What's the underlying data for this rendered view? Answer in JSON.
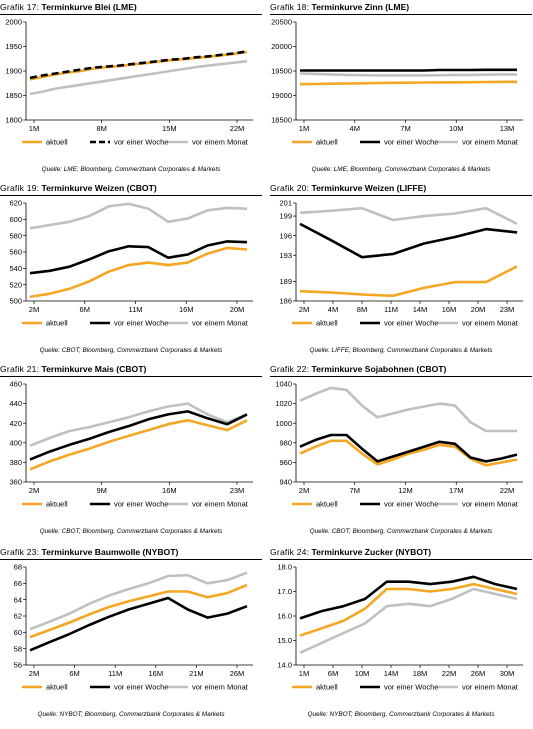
{
  "legend_default": [
    "aktuell",
    "vor einer Woche",
    "vor einem Monat"
  ],
  "charts": [
    {
      "caption_prefix": "Grafik 17",
      "title": "Terminkurve Blei (LME)",
      "source": "Quelle: LME; Bloomberg, Commerzbank Corporates & Markets",
      "legend": [
        "aktuell",
        "vor einer Woche",
        "vor einem Monat"
      ],
      "colors": [
        "#f5a623",
        "#000000",
        "#c0c0c0"
      ],
      "dashed": [
        false,
        true,
        false
      ],
      "chart_data": {
        "type": "line",
        "title": "Terminkurve Blei (LME)",
        "x_ticks": [
          "1M",
          "8M",
          "15M",
          "22M"
        ],
        "ylim": [
          1800,
          2000
        ],
        "yticks": [
          1800,
          1850,
          1900,
          1950,
          2000
        ],
        "series": [
          {
            "name": "aktuell",
            "values": [
              1883,
              1888,
              1893,
              1897,
              1900,
              1905,
              1908,
              1910,
              1913,
              1916,
              1919,
              1922,
              1924,
              1927,
              1929,
              1932,
              1935,
              1939
            ]
          },
          {
            "name": "vor einer Woche",
            "values": [
              1886,
              1891,
              1895,
              1899,
              1903,
              1907,
              1909,
              1911,
              1914,
              1917,
              1920,
              1923,
              1925,
              1928,
              1930,
              1933,
              1936,
              1940
            ]
          },
          {
            "name": "vor einem Monat",
            "values": [
              1853,
              1858,
              1864,
              1868,
              1872,
              1876,
              1880,
              1884,
              1888,
              1892,
              1896,
              1900,
              1904,
              1908,
              1911,
              1914,
              1917,
              1920
            ]
          }
        ]
      }
    },
    {
      "caption_prefix": "Grafik 18",
      "title": "Terminkurve Zinn (LME)",
      "source": "Quelle: LME, Bloomberg, Commerzbank Corporates & Markets",
      "legend": [
        "aktuell",
        "vor einer Woche",
        "vor einem Monat"
      ],
      "colors": [
        "#f5a623",
        "#000000",
        "#c0c0c0"
      ],
      "dashed": [
        false,
        false,
        false
      ],
      "chart_data": {
        "type": "line",
        "title": "Terminkurve Zinn (LME)",
        "x_ticks": [
          "1M",
          "4M",
          "7M",
          "10M",
          "13M"
        ],
        "ylim": [
          18500,
          20500
        ],
        "yticks": [
          18500,
          19000,
          19500,
          20000,
          20500
        ],
        "series": [
          {
            "name": "aktuell",
            "values": [
              19230,
              19235,
              19240,
              19245,
              19250,
              19255,
              19260,
              19262,
              19265,
              19268,
              19270,
              19272,
              19275,
              19278,
              19280
            ]
          },
          {
            "name": "vor einer Woche",
            "values": [
              19510,
              19510,
              19510,
              19510,
              19510,
              19510,
              19510,
              19510,
              19510,
              19520,
              19520,
              19520,
              19525,
              19525,
              19525
            ]
          },
          {
            "name": "vor einem Monat",
            "values": [
              19450,
              19440,
              19430,
              19420,
              19415,
              19410,
              19410,
              19410,
              19410,
              19415,
              19420,
              19420,
              19425,
              19430,
              19430
            ]
          }
        ]
      }
    },
    {
      "caption_prefix": "Grafik 19",
      "title": "Terminkurve Weizen (CBOT)",
      "source": "Quelle: CBOT; Bloomberg, Commerzbank Corporates & Markets",
      "legend": [
        "aktuell",
        "vor einer Woche",
        "vor einem Monat"
      ],
      "colors": [
        "#f5a623",
        "#000000",
        "#c0c0c0"
      ],
      "dashed": [
        false,
        false,
        false
      ],
      "chart_data": {
        "type": "line",
        "title": "Terminkurve Weizen (CBOT)",
        "x_ticks": [
          "2M",
          "6M",
          "11M",
          "16M",
          "20M"
        ],
        "ylim": [
          500,
          620
        ],
        "yticks": [
          500,
          520,
          540,
          560,
          580,
          600,
          620
        ],
        "series": [
          {
            "name": "aktuell",
            "values": [
              505,
              509,
              515,
              524,
              536,
              544,
              547,
              544,
              547,
              558,
              565,
              563
            ]
          },
          {
            "name": "vor einer Woche",
            "values": [
              534,
              537,
              542,
              551,
              561,
              567,
              566,
              553,
              557,
              568,
              573,
              572
            ]
          },
          {
            "name": "vor einem Monat",
            "values": [
              589,
              593,
              597,
              604,
              616,
              619,
              613,
              597,
              601,
              611,
              614,
              613
            ]
          }
        ]
      }
    },
    {
      "caption_prefix": "Grafik 20",
      "title": "Terminkurve Weizen (LIFFE)",
      "source": "Quelle: LIFFE; Bloomberg, Commerzbank Corporates & Markets",
      "legend": [
        "aktuell",
        "vor einer Woche",
        "vor einem Monat"
      ],
      "colors": [
        "#f5a623",
        "#000000",
        "#c0c0c0"
      ],
      "dashed": [
        false,
        false,
        false
      ],
      "chart_data": {
        "type": "line",
        "title": "Terminkurve Weizen (LIFFE)",
        "x_ticks": [
          "2M",
          "4M",
          "8M",
          "11M",
          "14M",
          "16M",
          "20M",
          "23M"
        ],
        "ylim": [
          186,
          201
        ],
        "yticks": [
          186,
          189,
          193,
          196,
          199,
          201
        ],
        "series": [
          {
            "name": "aktuell",
            "values": [
              187.5,
              187.3,
              187.0,
              186.8,
              188.0,
              188.9,
              188.9,
              191.3
            ]
          },
          {
            "name": "vor einer Woche",
            "values": [
              197.8,
              195.3,
              192.7,
              193.2,
              194.8,
              195.8,
              197.0,
              196.5
            ]
          },
          {
            "name": "vor einem Monat",
            "values": [
              199.5,
              199.8,
              200.2,
              198.4,
              199.0,
              199.4,
              200.2,
              197.8
            ]
          }
        ]
      }
    },
    {
      "caption_prefix": "Grafik 21",
      "title": "Terminkurve Mais (CBOT)",
      "source": "Quelle: CBOT; Bloomberg, Commerzbank Corporates & Markets",
      "legend": [
        "aktuell",
        "vor einer Woche",
        "vor einem Monat"
      ],
      "colors": [
        "#f5a623",
        "#000000",
        "#c0c0c0"
      ],
      "dashed": [
        false,
        false,
        false
      ],
      "chart_data": {
        "type": "line",
        "title": "Terminkurve Mais (CBOT)",
        "x_ticks": [
          "2M",
          "9M",
          "16M",
          "23M"
        ],
        "ylim": [
          360,
          460
        ],
        "yticks": [
          360,
          380,
          400,
          420,
          440,
          460
        ],
        "series": [
          {
            "name": "aktuell",
            "values": [
              373,
              381,
              388,
              394,
              401,
              407,
              413,
              419,
              423,
              418,
              413,
              423
            ]
          },
          {
            "name": "vor einer Woche",
            "values": [
              383,
              391,
              398,
              404,
              411,
              417,
              424,
              429,
              432,
              425,
              419,
              429
            ]
          },
          {
            "name": "vor einem Monat",
            "values": [
              397,
              405,
              412,
              416,
              421,
              426,
              432,
              437,
              440,
              429,
              421,
              429
            ]
          }
        ]
      }
    },
    {
      "caption_prefix": "Grafik 22",
      "title": "Terminkurve Sojabohnen (CBOT)",
      "source": "Quelle: CBOT; Bloomberg, Commerzbank Corporates & Markets",
      "legend": [
        "aktuell",
        "vor einer Woche",
        "vor einem Monat"
      ],
      "colors": [
        "#f5a623",
        "#000000",
        "#c0c0c0"
      ],
      "dashed": [
        false,
        false,
        false
      ],
      "chart_data": {
        "type": "line",
        "title": "Terminkurve Sojabohnen (CBOT)",
        "x_ticks": [
          "2M",
          "7M",
          "12M",
          "17M",
          "22M"
        ],
        "ylim": [
          940,
          1040
        ],
        "yticks": [
          940,
          960,
          980,
          1000,
          1020,
          1040
        ],
        "series": [
          {
            "name": "aktuell",
            "values": [
              969,
              976,
              982,
              982,
              969,
              958,
              963,
              969,
              973,
              978,
              976,
              964,
              957,
              960,
              963
            ]
          },
          {
            "name": "vor einer Woche",
            "values": [
              976,
              983,
              988,
              988,
              974,
              961,
              966,
              971,
              976,
              981,
              979,
              965,
              961,
              964,
              968
            ]
          },
          {
            "name": "vor einem Monat",
            "values": [
              1023,
              1030,
              1036,
              1034,
              1018,
              1006,
              1010,
              1014,
              1017,
              1020,
              1018,
              1001,
              992,
              992,
              992
            ]
          }
        ]
      }
    },
    {
      "caption_prefix": "Grafik 23",
      "title": "Terminkurve Baumwolle (NYBOT)",
      "source": "Quelle: NYBOT; Bloomberg, Commerzbank Corporates & Markets",
      "legend": [
        "aktuell",
        "vor einer Woche",
        "vor einem Monat"
      ],
      "colors": [
        "#f5a623",
        "#000000",
        "#c0c0c0"
      ],
      "dashed": [
        false,
        false,
        false
      ],
      "chart_data": {
        "type": "line",
        "title": "Terminkurve Baumwolle (NYBOT)",
        "x_ticks": [
          "2M",
          "6M",
          "11M",
          "16M",
          "21M",
          "26M"
        ],
        "ylim": [
          56,
          68
        ],
        "yticks": [
          56,
          58,
          60,
          62,
          64,
          66,
          68
        ],
        "series": [
          {
            "name": "aktuell",
            "values": [
              59.4,
              60.3,
              61.2,
              62.2,
              63.1,
              63.8,
              64.4,
              65.0,
              65.0,
              64.3,
              64.8,
              65.8
            ]
          },
          {
            "name": "vor einer Woche",
            "values": [
              57.8,
              58.8,
              59.8,
              60.9,
              61.9,
              62.8,
              63.5,
              64.2,
              62.8,
              61.8,
              62.3,
              63.2
            ]
          },
          {
            "name": "vor einem Monat",
            "values": [
              60.4,
              61.3,
              62.3,
              63.5,
              64.5,
              65.3,
              66.0,
              66.9,
              67.0,
              66.0,
              66.4,
              67.3
            ]
          }
        ]
      }
    },
    {
      "caption_prefix": "Grafik 24",
      "title": "Terminkurve Zucker (NYBOT)",
      "source": "Quelle: NYBOT; Bloomberg, Commerzbank Corporates & Markets",
      "legend": [
        "aktuell",
        "vor einer Woche",
        "vor einem Monat"
      ],
      "colors": [
        "#f5a623",
        "#000000",
        "#c0c0c0"
      ],
      "dashed": [
        false,
        false,
        false
      ],
      "chart_data": {
        "type": "line",
        "title": "Terminkurve Zucker (NYBOT)",
        "x_ticks": [
          "1M",
          "6M",
          "10M",
          "14M",
          "18M",
          "22M",
          "26M",
          "30M"
        ],
        "ylim": [
          14.0,
          18.0
        ],
        "yticks": [
          14.0,
          15.0,
          16.0,
          17.0,
          18.0
        ],
        "series": [
          {
            "name": "aktuell",
            "values": [
              15.2,
              15.5,
              15.8,
              16.3,
              17.1,
              17.1,
              17.0,
              17.1,
              17.3,
              17.1,
              16.9
            ]
          },
          {
            "name": "vor einer Woche",
            "values": [
              15.9,
              16.2,
              16.4,
              16.7,
              17.4,
              17.4,
              17.3,
              17.4,
              17.6,
              17.3,
              17.1
            ]
          },
          {
            "name": "vor einem Monat",
            "values": [
              14.5,
              14.9,
              15.3,
              15.7,
              16.4,
              16.5,
              16.4,
              16.7,
              17.1,
              16.9,
              16.7
            ]
          }
        ]
      }
    }
  ]
}
